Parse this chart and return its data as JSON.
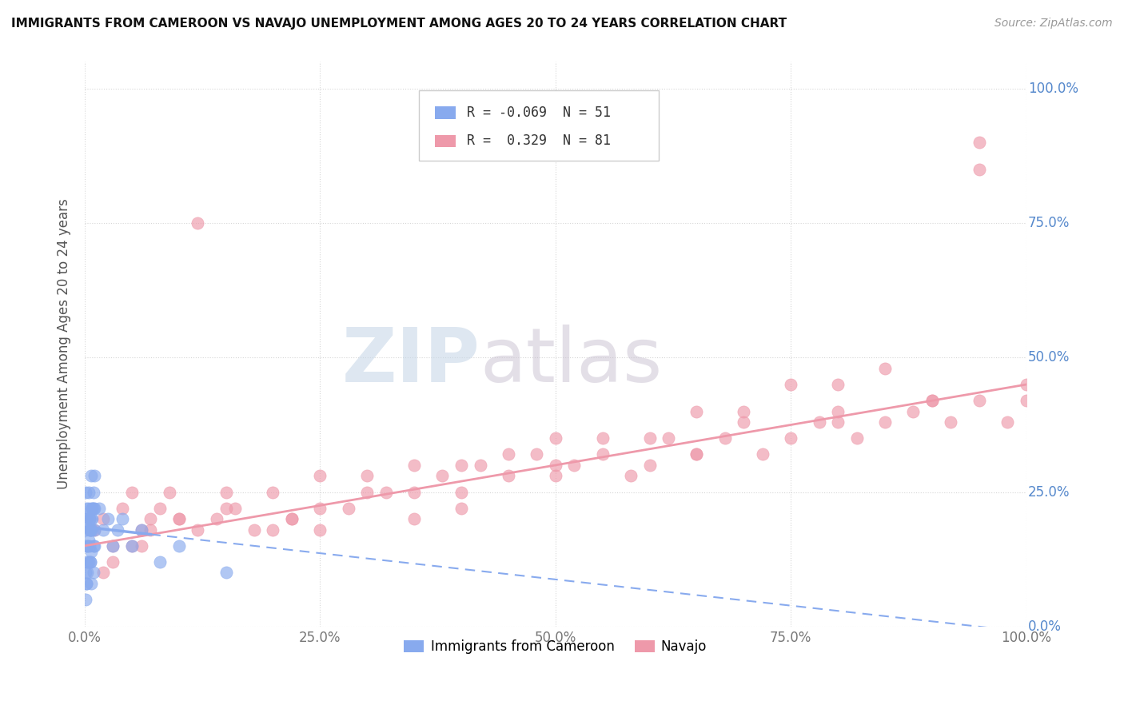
{
  "title": "IMMIGRANTS FROM CAMEROON VS NAVAJO UNEMPLOYMENT AMONG AGES 20 TO 24 YEARS CORRELATION CHART",
  "source": "Source: ZipAtlas.com",
  "ylabel": "Unemployment Among Ages 20 to 24 years",
  "xlim": [
    0,
    1.0
  ],
  "ylim": [
    0,
    1.05
  ],
  "xticks": [
    0,
    0.25,
    0.5,
    0.75,
    1.0
  ],
  "xtick_labels": [
    "0.0%",
    "25.0%",
    "50.0%",
    "75.0%",
    "100.0%"
  ],
  "ytick_labels": [
    "0.0%",
    "25.0%",
    "50.0%",
    "75.0%",
    "100.0%"
  ],
  "yticks": [
    0,
    0.25,
    0.5,
    0.75,
    1.0
  ],
  "cameroon_color": "#88aaee",
  "navajo_color": "#ee99aa",
  "cameroon_R": -0.069,
  "cameroon_N": 51,
  "navajo_R": 0.329,
  "navajo_N": 81,
  "watermark_zip": "ZIP",
  "watermark_atlas": "atlas",
  "legend_label_1": "Immigrants from Cameroon",
  "legend_label_2": "Navajo",
  "background_color": "#ffffff",
  "ytick_color": "#5588cc",
  "grid_color": "#cccccc",
  "cameroon_points_x": [
    0.001,
    0.002,
    0.003,
    0.004,
    0.005,
    0.006,
    0.007,
    0.008,
    0.009,
    0.01,
    0.001,
    0.002,
    0.003,
    0.004,
    0.005,
    0.006,
    0.007,
    0.008,
    0.009,
    0.01,
    0.001,
    0.002,
    0.003,
    0.004,
    0.005,
    0.006,
    0.007,
    0.008,
    0.009,
    0.01,
    0.001,
    0.002,
    0.003,
    0.004,
    0.005,
    0.006,
    0.007,
    0.008,
    0.009,
    0.01,
    0.015,
    0.02,
    0.025,
    0.03,
    0.035,
    0.04,
    0.05,
    0.06,
    0.08,
    0.1,
    0.15
  ],
  "cameroon_points_y": [
    0.18,
    0.22,
    0.15,
    0.25,
    0.2,
    0.12,
    0.28,
    0.18,
    0.22,
    0.15,
    0.1,
    0.08,
    0.12,
    0.16,
    0.2,
    0.18,
    0.14,
    0.22,
    0.1,
    0.18,
    0.25,
    0.2,
    0.15,
    0.22,
    0.18,
    0.12,
    0.08,
    0.2,
    0.15,
    0.22,
    0.05,
    0.08,
    0.1,
    0.12,
    0.15,
    0.18,
    0.2,
    0.22,
    0.25,
    0.28,
    0.22,
    0.18,
    0.2,
    0.15,
    0.18,
    0.2,
    0.15,
    0.18,
    0.12,
    0.15,
    0.1
  ],
  "navajo_points_x": [
    0.01,
    0.02,
    0.03,
    0.04,
    0.05,
    0.06,
    0.07,
    0.08,
    0.09,
    0.1,
    0.12,
    0.14,
    0.16,
    0.18,
    0.2,
    0.22,
    0.25,
    0.28,
    0.3,
    0.32,
    0.35,
    0.38,
    0.4,
    0.42,
    0.45,
    0.48,
    0.5,
    0.52,
    0.55,
    0.58,
    0.6,
    0.62,
    0.65,
    0.68,
    0.7,
    0.72,
    0.75,
    0.78,
    0.8,
    0.82,
    0.85,
    0.88,
    0.9,
    0.92,
    0.95,
    0.98,
    1.0,
    0.05,
    0.1,
    0.15,
    0.2,
    0.25,
    0.3,
    0.35,
    0.4,
    0.5,
    0.6,
    0.7,
    0.8,
    0.9,
    0.03,
    0.07,
    0.15,
    0.25,
    0.4,
    0.55,
    0.65,
    0.75,
    0.85,
    0.95,
    0.02,
    0.06,
    0.12,
    0.22,
    0.35,
    0.5,
    0.65,
    0.8,
    0.95,
    1.0,
    0.45
  ],
  "navajo_points_y": [
    0.18,
    0.2,
    0.15,
    0.22,
    0.25,
    0.18,
    0.2,
    0.22,
    0.25,
    0.2,
    0.75,
    0.2,
    0.22,
    0.18,
    0.25,
    0.2,
    0.18,
    0.22,
    0.28,
    0.25,
    0.3,
    0.28,
    0.25,
    0.3,
    0.28,
    0.32,
    0.35,
    0.3,
    0.32,
    0.28,
    0.3,
    0.35,
    0.32,
    0.35,
    0.38,
    0.32,
    0.35,
    0.38,
    0.4,
    0.35,
    0.38,
    0.4,
    0.42,
    0.38,
    0.42,
    0.38,
    0.42,
    0.15,
    0.2,
    0.22,
    0.18,
    0.22,
    0.25,
    0.2,
    0.22,
    0.3,
    0.35,
    0.4,
    0.45,
    0.42,
    0.12,
    0.18,
    0.25,
    0.28,
    0.3,
    0.35,
    0.4,
    0.45,
    0.48,
    0.85,
    0.1,
    0.15,
    0.18,
    0.2,
    0.25,
    0.28,
    0.32,
    0.38,
    0.9,
    0.45,
    0.32
  ]
}
